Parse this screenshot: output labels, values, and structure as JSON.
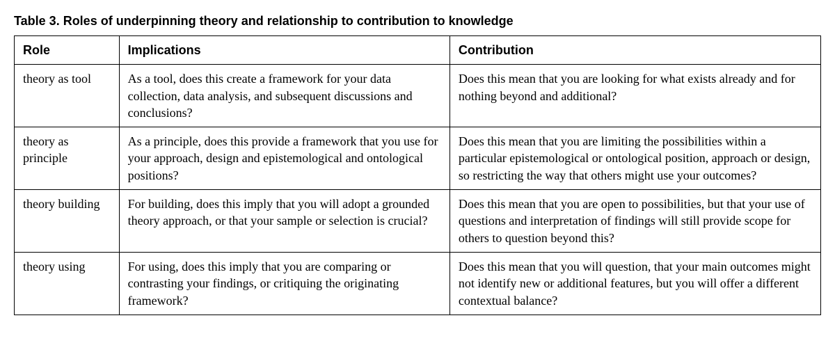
{
  "table": {
    "title": "Table 3.  Roles of underpinning theory and relationship to contribution to knowledge",
    "columns": [
      "Role",
      "Implications",
      "Contribution"
    ],
    "column_widths": [
      "13%",
      "41%",
      "46%"
    ],
    "border_color": "#000000",
    "background_color": "#ffffff",
    "text_color": "#000000",
    "header_font": "Arial, Helvetica, sans-serif",
    "body_font": "Georgia, 'Times New Roman', serif",
    "title_fontsize": 18,
    "cell_fontsize": 18,
    "rows": [
      {
        "role": "theory as tool",
        "implications": "As a tool, does this create a framework for your data collection, data analysis, and subsequent discussions and conclusions?",
        "contribution": "Does this mean that you are looking for what exists already and for nothing beyond and additional?"
      },
      {
        "role": "theory as principle",
        "implications": "As a principle, does this provide a framework that you use for your approach, design and epistemological and ontological positions?",
        "contribution": "Does this mean that you are limiting the possibilities within a particular epistemological or ontological position, approach or design, so restricting the way that others might use your outcomes?"
      },
      {
        "role": "theory building",
        "implications": "For building, does this imply that you will adopt a grounded theory approach, or that your sample or selection is crucial?",
        "contribution": "Does this mean that you are open to possibilities, but that your use of questions and interpretation of findings will still provide scope for others to question beyond this?"
      },
      {
        "role": "theory using",
        "implications": "For using, does this imply that you are comparing or contrasting your findings, or critiquing the originating framework?",
        "contribution": "Does this mean that you will question, that your main outcomes might not identify new or additional features, but you will offer a different contextual balance?"
      }
    ]
  }
}
